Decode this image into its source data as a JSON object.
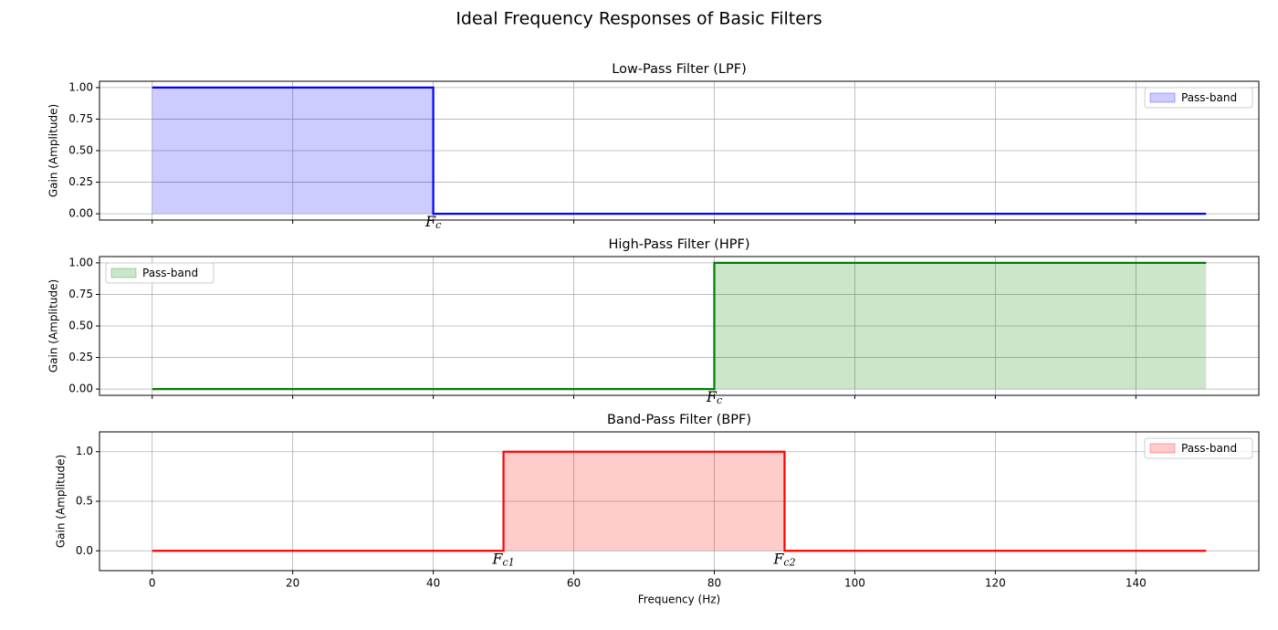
{
  "title": "Ideal Frequency Responses of Basic Filters",
  "chart_data": [
    {
      "type": "line",
      "title": "Low-Pass Filter (LPF)",
      "y_label": "Gain (Amplitude)",
      "x": [
        0,
        40,
        40,
        150
      ],
      "series": [
        {
          "name": "Pass-band",
          "color": "#0000ff",
          "fill_color": "#0000ff",
          "fill_opacity": 0.2,
          "values": [
            1,
            1,
            0,
            0
          ]
        }
      ],
      "xlim": [
        -7.5,
        157.5
      ],
      "xticks": [
        0,
        20,
        40,
        60,
        80,
        100,
        120,
        140
      ],
      "xtick_labels": false,
      "ylim": [
        -0.05,
        1.05
      ],
      "yticks": [
        {
          "value": 0,
          "label": "0.00"
        },
        {
          "value": 0.25,
          "label": "0.25"
        },
        {
          "value": 0.5,
          "label": "0.50"
        },
        {
          "value": 0.75,
          "label": "0.75"
        },
        {
          "value": 1,
          "label": "1.00"
        }
      ],
      "grid": true,
      "legend": "upper right",
      "annotations": [
        {
          "text": "F",
          "subscript": "c",
          "x": 40,
          "y": 0
        }
      ]
    },
    {
      "type": "line",
      "title": "High-Pass Filter (HPF)",
      "y_label": "Gain (Amplitude)",
      "x": [
        0,
        80,
        80,
        150
      ],
      "series": [
        {
          "name": "Pass-band",
          "color": "#008000",
          "fill_color": "#008000",
          "fill_opacity": 0.2,
          "values": [
            0,
            0,
            1,
            1
          ]
        }
      ],
      "xlim": [
        -7.5,
        157.5
      ],
      "xticks": [
        0,
        20,
        40,
        60,
        80,
        100,
        120,
        140
      ],
      "xtick_labels": false,
      "ylim": [
        -0.05,
        1.05
      ],
      "yticks": [
        {
          "value": 0,
          "label": "0.00"
        },
        {
          "value": 0.25,
          "label": "0.25"
        },
        {
          "value": 0.5,
          "label": "0.50"
        },
        {
          "value": 0.75,
          "label": "0.75"
        },
        {
          "value": 1,
          "label": "1.00"
        }
      ],
      "grid": true,
      "legend": "upper left",
      "annotations": [
        {
          "text": "F",
          "subscript": "c",
          "x": 80,
          "y": 0
        }
      ]
    },
    {
      "type": "line",
      "title": "Band-Pass Filter (BPF)",
      "y_label": "Gain (Amplitude)",
      "x_label": "Frequency (Hz)",
      "x": [
        0,
        50,
        50,
        90,
        90,
        150
      ],
      "series": [
        {
          "name": "Pass-band",
          "color": "#ff0000",
          "fill_color": "#ff0000",
          "fill_opacity": 0.2,
          "values": [
            0,
            0,
            1,
            1,
            0,
            0
          ]
        }
      ],
      "xlim": [
        -7.5,
        157.5
      ],
      "xticks": [
        0,
        20,
        40,
        60,
        80,
        100,
        120,
        140
      ],
      "xtick_labels": true,
      "ylim": [
        -0.2,
        1.2
      ],
      "yticks": [
        {
          "value": 0,
          "label": "0.0"
        },
        {
          "value": 0.5,
          "label": "0.5"
        },
        {
          "value": 1,
          "label": "1.0"
        }
      ],
      "grid": true,
      "legend": "upper right",
      "annotations": [
        {
          "text": "F",
          "subscript": "c1",
          "x": 50,
          "y": 0
        },
        {
          "text": "F",
          "subscript": "c2",
          "x": 90,
          "y": 0
        }
      ]
    }
  ]
}
